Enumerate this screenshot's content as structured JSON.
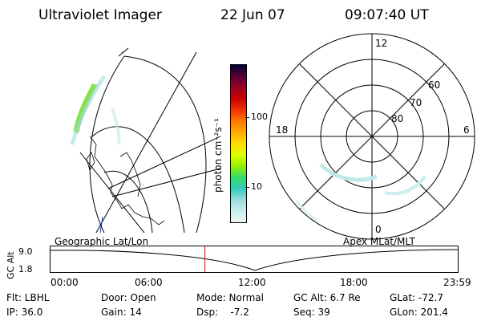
{
  "header": {
    "instrument": "Ultraviolet Imager",
    "date": "22 Jun 07",
    "time": "09:07:40 UT"
  },
  "colorbar": {
    "unit_label": "photon cm⁻²s⁻¹",
    "ticks": [
      "100",
      "10"
    ],
    "colors": [
      "#000033",
      "#550033",
      "#990022",
      "#cc0000",
      "#ee3300",
      "#ff7700",
      "#ffaa00",
      "#ffdd00",
      "#ddff00",
      "#99ee00",
      "#33dd66",
      "#33ccbb",
      "#99dddd",
      "#cceeee",
      "#eef6f6"
    ]
  },
  "left_map": {
    "caption": "Geographic Lat/Lon"
  },
  "polar_plot": {
    "caption": "Apex MLat/MLT",
    "lat_labels": [
      "60",
      "70",
      "80"
    ],
    "mlt_labels": [
      "12",
      "18",
      "6",
      "0"
    ]
  },
  "timeline": {
    "ylabel": "GC Alt",
    "y_ticks": [
      "9.0",
      "1.8"
    ],
    "x_ticks": [
      "00:00",
      "06:00",
      "12:00",
      "18:00",
      "23:59"
    ],
    "current_time_fraction": 0.379
  },
  "info": {
    "flt": "Flt: LBHL",
    "ip": "IP: 36.0",
    "door": "Door: Open",
    "gain": "Gain: 14",
    "mode": "Mode: Normal",
    "dsp": "Dsp:    -7.2",
    "gc_alt": "GC Alt: 6.7 Re",
    "seq": "Seq: 39",
    "glat": "GLat: -72.7",
    "glon": "GLon: 201.4"
  }
}
